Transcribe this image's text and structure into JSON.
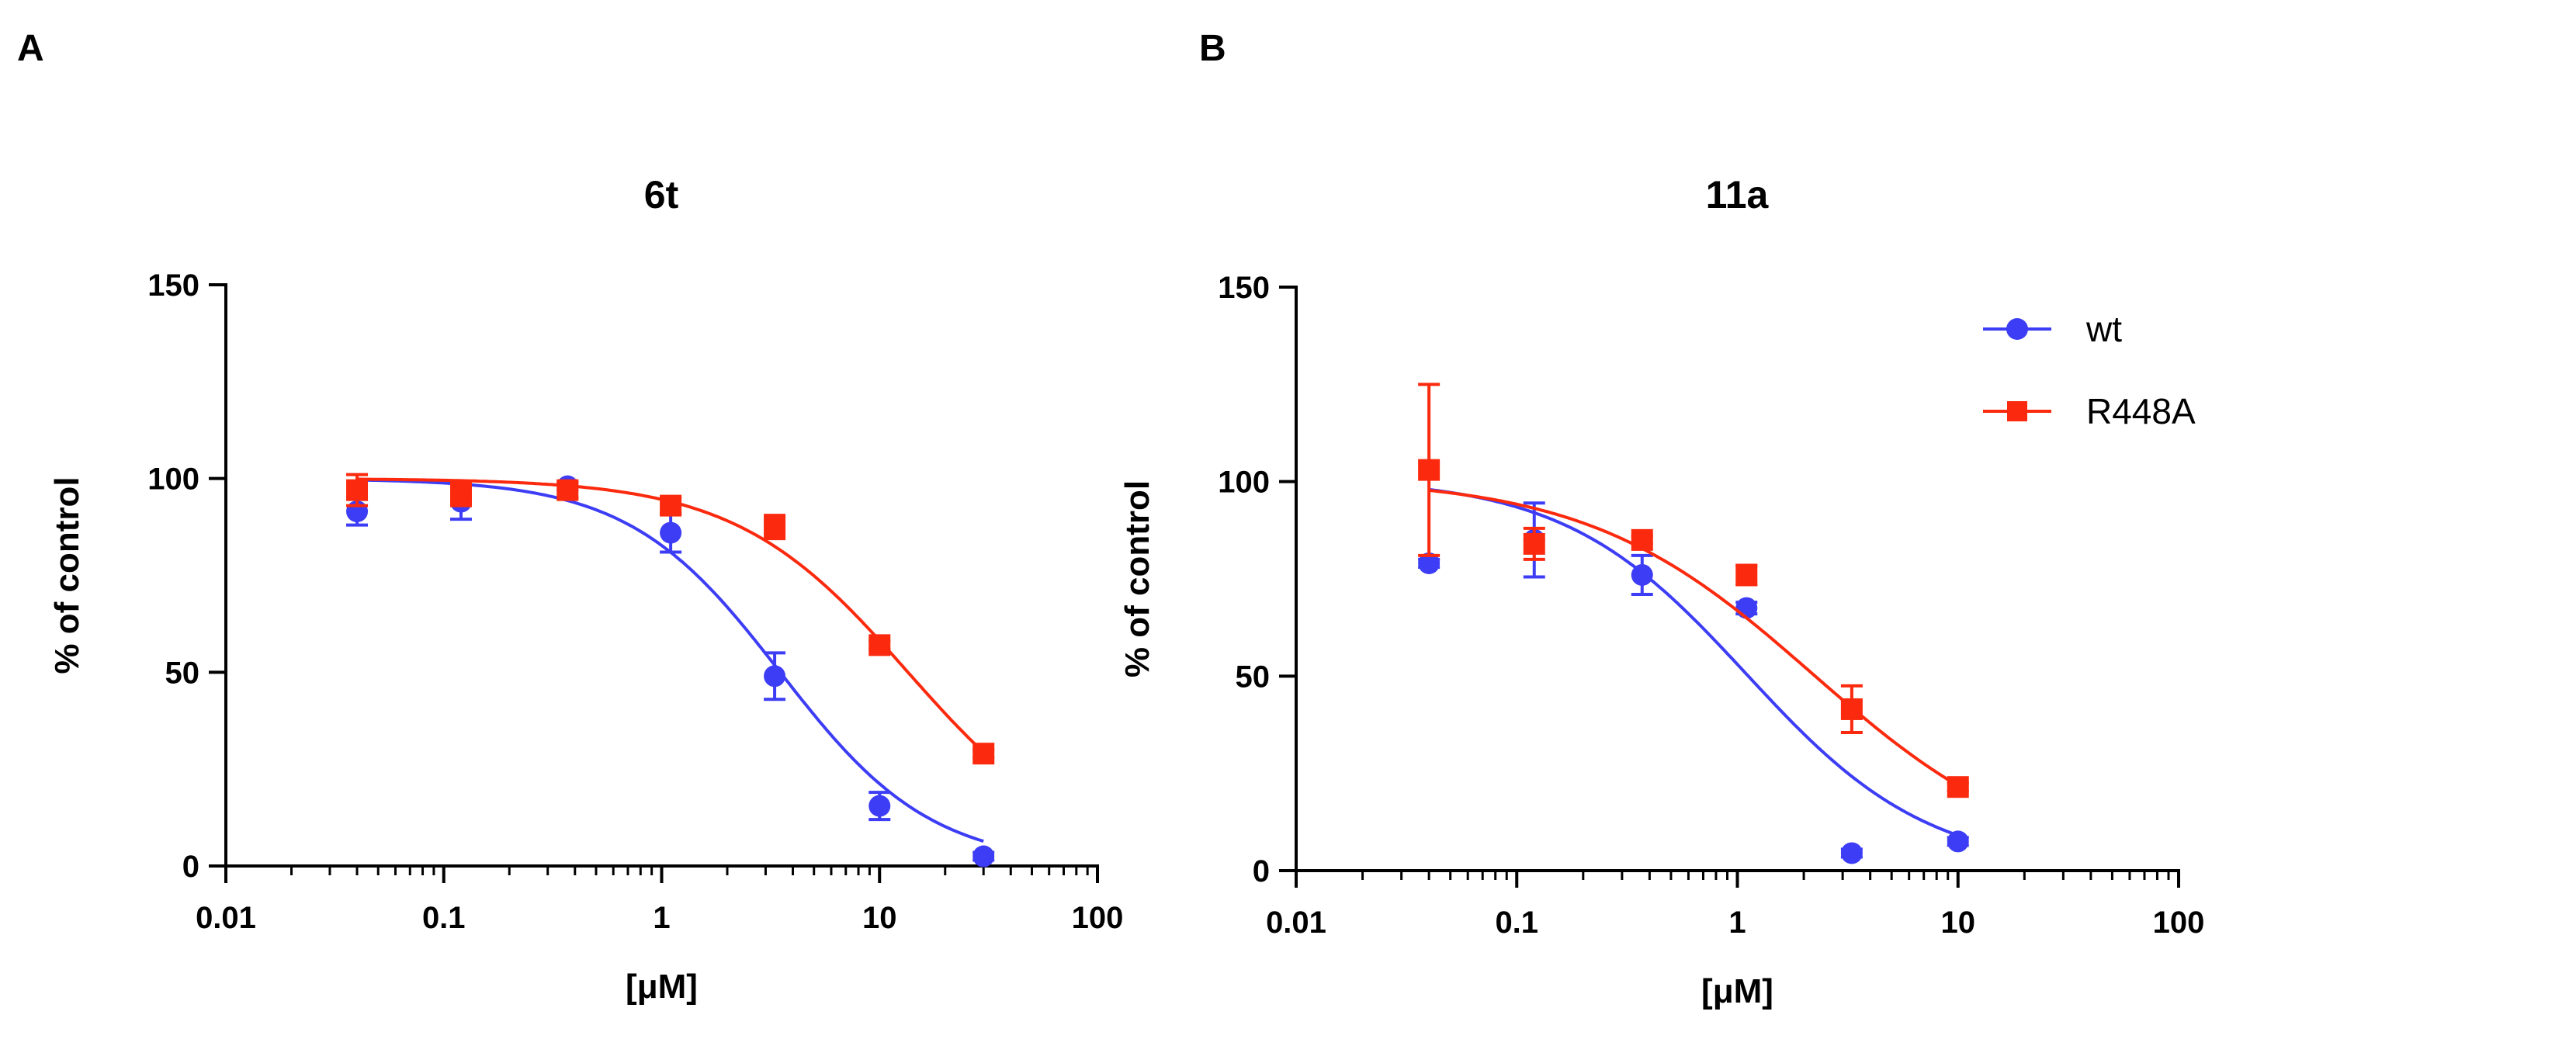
{
  "panels": [
    {
      "letter": "A"
    },
    {
      "letter": "B"
    }
  ],
  "colors": {
    "wt": "#3d3df5",
    "R448A": "#fb2a0e"
  },
  "legend": {
    "wt": "wt",
    "R448A": "R448A"
  },
  "chart_data": [
    {
      "type": "scatter",
      "title": "6t",
      "xlabel": "[μM]",
      "ylabel": "% of control",
      "xscale": "log",
      "xlim": [
        0.01,
        100
      ],
      "ylim": [
        0,
        150
      ],
      "xticks": [
        0.01,
        0.1,
        1,
        10,
        100
      ],
      "xtick_labels": [
        "0.01",
        "0.1",
        "1",
        "10",
        "100"
      ],
      "yticks": [
        0,
        50,
        100,
        150
      ],
      "ytick_labels": [
        "0",
        "50",
        "100",
        "150"
      ],
      "series": [
        {
          "name": "wt",
          "x": [
            0.04,
            0.12,
            0.37,
            1.1,
            3.3,
            10,
            30
          ],
          "y": [
            91.5,
            94,
            98,
            86,
            49,
            15.5,
            2.5
          ],
          "err": [
            3.5,
            4.5,
            1.0,
            5.0,
            6.0,
            3.5,
            1.0
          ],
          "fit": {
            "top": 100,
            "bottom": 0,
            "ic50": 3.5,
            "hill": 1.25
          }
        },
        {
          "name": "R448A",
          "x": [
            0.04,
            0.12,
            0.37,
            1.1,
            3.3,
            10,
            30
          ],
          "y": [
            97,
            96,
            97,
            93,
            87.5,
            57,
            29
          ],
          "err": [
            4.0,
            3.0,
            2.0,
            2.0,
            3.0,
            1.0,
            1.0
          ],
          "fit": {
            "top": 100,
            "bottom": 0,
            "ic50": 13.5,
            "hill": 1.1
          }
        }
      ]
    },
    {
      "type": "scatter",
      "title": "11a",
      "xlabel": "[μM]",
      "ylabel": "% of control",
      "xscale": "log",
      "xlim": [
        0.01,
        100
      ],
      "ylim": [
        0,
        150
      ],
      "xticks": [
        0.01,
        0.1,
        1,
        10,
        100
      ],
      "xtick_labels": [
        "0.01",
        "0.1",
        "1",
        "10",
        "100"
      ],
      "yticks": [
        0,
        50,
        100,
        150
      ],
      "ytick_labels": [
        "0",
        "50",
        "100",
        "150"
      ],
      "series": [
        {
          "name": "wt",
          "x": [
            0.04,
            0.12,
            0.37,
            1.1,
            3.3,
            10
          ],
          "y": [
            79,
            85,
            76,
            67.5,
            4.5,
            7.5
          ],
          "err": [
            1.0,
            9.5,
            5.0,
            1.5,
            1.0,
            1.0
          ],
          "fit": {
            "top": 101,
            "bottom": 0,
            "ic50": 1.1,
            "hill": 1.05
          }
        },
        {
          "name": "R448A",
          "x": [
            0.04,
            0.12,
            0.37,
            1.1,
            3.3,
            10
          ],
          "y": [
            103,
            84,
            85,
            76,
            41.5,
            21.5
          ],
          "err": [
            22,
            4.0,
            1.0,
            2.5,
            6.0,
            1.0
          ],
          "fit": {
            "top": 101,
            "bottom": 0,
            "ic50": 2.2,
            "hill": 0.85
          }
        }
      ]
    }
  ]
}
